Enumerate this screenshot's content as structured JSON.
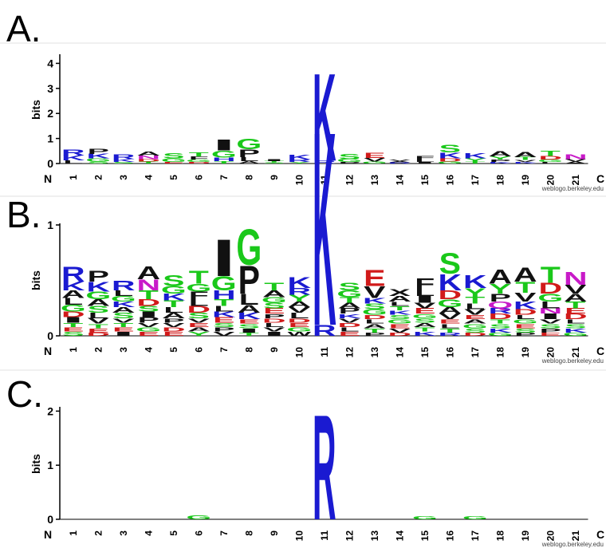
{
  "colors": {
    "basic": "#1a1ad1",
    "acidic": "#d11a1a",
    "polar": "#1ac81a",
    "hydrophobic": "#111111",
    "amide": "#c81ac8"
  },
  "chart_data": [
    {
      "type": "sequence-logo",
      "panel_label": "A.",
      "ylabel": "bits",
      "ylim": [
        0,
        4.3
      ],
      "yticks": [
        "0",
        "1",
        "2",
        "3",
        "4"
      ],
      "ytick_values": [
        0,
        1,
        2,
        3,
        4
      ],
      "n_label": "N",
      "c_label": "C",
      "positions": [
        "1",
        "2",
        "3",
        "4",
        "5",
        "6",
        "7",
        "8",
        "9",
        "10",
        "11",
        "12",
        "13",
        "14",
        "15",
        "16",
        "17",
        "18",
        "19",
        "20",
        "21"
      ],
      "credit": "weblogo.berkeley.edu",
      "stacks": [
        [
          [
            "R",
            0.25
          ],
          [
            "K",
            0.2
          ],
          [
            "L",
            0.12
          ]
        ],
        [
          [
            "P",
            0.2
          ],
          [
            "K",
            0.18
          ],
          [
            "G",
            0.12
          ],
          [
            "S",
            0.08
          ]
        ],
        [
          [
            "R",
            0.18
          ],
          [
            "K",
            0.12
          ],
          [
            "S",
            0.06
          ]
        ],
        [
          [
            "A",
            0.16
          ],
          [
            "N",
            0.14
          ],
          [
            "D",
            0.1
          ],
          [
            "T",
            0.08
          ]
        ],
        [
          [
            "S",
            0.22
          ],
          [
            "G",
            0.14
          ],
          [
            "E",
            0.06
          ]
        ],
        [
          [
            "T",
            0.16
          ],
          [
            "F",
            0.12
          ],
          [
            "G",
            0.1
          ],
          [
            "D",
            0.06
          ]
        ],
        [
          [
            "I",
            0.45
          ],
          [
            "G",
            0.28
          ],
          [
            "H",
            0.14
          ],
          [
            "T",
            0.1
          ]
        ],
        [
          [
            "G",
            0.42
          ],
          [
            "P",
            0.32
          ],
          [
            "L",
            0.16
          ],
          [
            "A",
            0.1
          ]
        ],
        [
          [
            "I",
            0.08
          ],
          [
            "T",
            0.06
          ],
          [
            "S",
            0.04
          ]
        ],
        [
          [
            "K",
            0.18
          ],
          [
            "R",
            0.1
          ],
          [
            "Y",
            0.06
          ]
        ],
        [
          [
            "K",
            3.6
          ],
          [
            "R",
            0.12
          ]
        ],
        [
          [
            "S",
            0.2
          ],
          [
            "G",
            0.12
          ],
          [
            "P",
            0.06
          ]
        ],
        [
          [
            "E",
            0.22
          ],
          [
            "V",
            0.14
          ],
          [
            "G",
            0.08
          ]
        ],
        [
          [
            "V",
            0.06
          ],
          [
            "A",
            0.05
          ],
          [
            "R",
            0.04
          ]
        ],
        [
          [
            "F",
            0.14
          ],
          [
            "L",
            0.1
          ],
          [
            "I",
            0.06
          ]
        ],
        [
          [
            "S",
            0.32
          ],
          [
            "K",
            0.24
          ],
          [
            "D",
            0.12
          ],
          [
            "G",
            0.08
          ]
        ],
        [
          [
            "K",
            0.2
          ],
          [
            "Y",
            0.12
          ],
          [
            "T",
            0.08
          ]
        ],
        [
          [
            "A",
            0.2
          ],
          [
            "Y",
            0.12
          ],
          [
            "P",
            0.1
          ],
          [
            "K",
            0.06
          ]
        ],
        [
          [
            "A",
            0.2
          ],
          [
            "T",
            0.12
          ],
          [
            "V",
            0.08
          ],
          [
            "K",
            0.06
          ]
        ],
        [
          [
            "T",
            0.22
          ],
          [
            "D",
            0.14
          ],
          [
            "G",
            0.1
          ],
          [
            "L",
            0.06
          ]
        ],
        [
          [
            "N",
            0.18
          ],
          [
            "V",
            0.1
          ],
          [
            "A",
            0.08
          ]
        ]
      ]
    },
    {
      "type": "sequence-logo",
      "panel_label": "B.",
      "ylabel": "bits",
      "ylim": [
        0,
        1
      ],
      "yticks": [
        "0",
        "1"
      ],
      "ytick_values": [
        0,
        1
      ],
      "n_label": "N",
      "c_label": "C",
      "positions": [
        "1",
        "2",
        "3",
        "4",
        "5",
        "6",
        "7",
        "8",
        "9",
        "10",
        "11",
        "12",
        "13",
        "14",
        "15",
        "16",
        "17",
        "18",
        "19",
        "20",
        "21"
      ],
      "credit": "weblogo.berkeley.edu",
      "stacks": [
        [
          [
            "R",
            0.14
          ],
          [
            "I",
            0.05
          ],
          [
            "K",
            0.08
          ],
          [
            "G",
            0.06
          ],
          [
            "S",
            0.04
          ],
          [
            "A",
            0.07
          ],
          [
            "L",
            0.06
          ],
          [
            "D",
            0.05
          ],
          [
            "E",
            0.04
          ],
          [
            "T",
            0.04
          ]
        ],
        [
          [
            "P",
            0.1
          ],
          [
            "K",
            0.09
          ],
          [
            "G",
            0.07
          ],
          [
            "S",
            0.06
          ],
          [
            "A",
            0.06
          ],
          [
            "V",
            0.05
          ],
          [
            "L",
            0.05
          ],
          [
            "E",
            0.04
          ],
          [
            "T",
            0.04
          ],
          [
            "D",
            0.03
          ]
        ],
        [
          [
            "R",
            0.09
          ],
          [
            "I",
            0.04
          ],
          [
            "S",
            0.05
          ],
          [
            "A",
            0.05
          ],
          [
            "K",
            0.05
          ],
          [
            "G",
            0.05
          ],
          [
            "L",
            0.05
          ],
          [
            "E",
            0.04
          ],
          [
            "T",
            0.04
          ],
          [
            "V",
            0.04
          ]
        ],
        [
          [
            "A",
            0.12
          ],
          [
            "N",
            0.1
          ],
          [
            "T",
            0.08
          ],
          [
            "D",
            0.06
          ],
          [
            "P",
            0.05
          ],
          [
            "I",
            0.05
          ],
          [
            "S",
            0.05
          ],
          [
            "E",
            0.04
          ],
          [
            "G",
            0.04
          ],
          [
            "V",
            0.04
          ]
        ],
        [
          [
            "S",
            0.1
          ],
          [
            "G",
            0.07
          ],
          [
            "T",
            0.06
          ],
          [
            "K",
            0.06
          ],
          [
            "A",
            0.05
          ],
          [
            "L",
            0.05
          ],
          [
            "E",
            0.04
          ],
          [
            "D",
            0.04
          ],
          [
            "V",
            0.04
          ],
          [
            "P",
            0.04
          ]
        ],
        [
          [
            "T",
            0.12
          ],
          [
            "F",
            0.07
          ],
          [
            "G",
            0.07
          ],
          [
            "D",
            0.06
          ],
          [
            "L",
            0.06
          ],
          [
            "S",
            0.05
          ],
          [
            "Y",
            0.04
          ],
          [
            "A",
            0.04
          ],
          [
            "E",
            0.04
          ],
          [
            "V",
            0.04
          ]
        ],
        [
          [
            "I",
            0.34
          ],
          [
            "G",
            0.13
          ],
          [
            "H",
            0.08
          ],
          [
            "T",
            0.06
          ],
          [
            "E",
            0.05
          ],
          [
            "K",
            0.05
          ],
          [
            "L",
            0.05
          ],
          [
            "V",
            0.04
          ],
          [
            "P",
            0.04
          ],
          [
            "S",
            0.04
          ]
        ],
        [
          [
            "G",
            0.33
          ],
          [
            "P",
            0.26
          ],
          [
            "L",
            0.1
          ],
          [
            "A",
            0.07
          ],
          [
            "K",
            0.06
          ],
          [
            "I",
            0.04
          ],
          [
            "S",
            0.04
          ],
          [
            "E",
            0.04
          ],
          [
            "T",
            0.03
          ]
        ],
        [
          [
            "I",
            0.04
          ],
          [
            "T",
            0.07
          ],
          [
            "A",
            0.06
          ],
          [
            "E",
            0.05
          ],
          [
            "S",
            0.05
          ],
          [
            "G",
            0.05
          ],
          [
            "V",
            0.04
          ],
          [
            "L",
            0.04
          ],
          [
            "D",
            0.04
          ],
          [
            "P",
            0.04
          ]
        ],
        [
          [
            "K",
            0.1
          ],
          [
            "Y",
            0.06
          ],
          [
            "R",
            0.06
          ],
          [
            "L",
            0.05
          ],
          [
            "V",
            0.05
          ],
          [
            "A",
            0.05
          ],
          [
            "W",
            0.04
          ],
          [
            "G",
            0.04
          ],
          [
            "E",
            0.04
          ],
          [
            "D",
            0.04
          ]
        ],
        [
          [
            "K",
            1.8
          ],
          [
            "R",
            0.1
          ]
        ],
        [
          [
            "S",
            0.07
          ],
          [
            "G",
            0.06
          ],
          [
            "P",
            0.05
          ],
          [
            "A",
            0.05
          ],
          [
            "T",
            0.05
          ],
          [
            "E",
            0.04
          ],
          [
            "L",
            0.04
          ],
          [
            "D",
            0.04
          ],
          [
            "V",
            0.04
          ],
          [
            "K",
            0.04
          ]
        ],
        [
          [
            "E",
            0.15
          ],
          [
            "V",
            0.11
          ],
          [
            "G",
            0.05
          ],
          [
            "S",
            0.05
          ],
          [
            "K",
            0.05
          ],
          [
            "T",
            0.04
          ],
          [
            "A",
            0.04
          ],
          [
            "L",
            0.04
          ],
          [
            "D",
            0.04
          ],
          [
            "P",
            0.03
          ]
        ],
        [
          [
            "X",
            0.06
          ],
          [
            "A",
            0.05
          ],
          [
            "V",
            0.04
          ],
          [
            "E",
            0.04
          ],
          [
            "G",
            0.04
          ],
          [
            "S",
            0.04
          ],
          [
            "K",
            0.04
          ],
          [
            "T",
            0.04
          ],
          [
            "L",
            0.04
          ],
          [
            "D",
            0.03
          ]
        ],
        [
          [
            "F",
            0.1
          ],
          [
            "I",
            0.06
          ],
          [
            "L",
            0.06
          ],
          [
            "E",
            0.05
          ],
          [
            "V",
            0.05
          ],
          [
            "K",
            0.04
          ],
          [
            "T",
            0.04
          ],
          [
            "A",
            0.04
          ],
          [
            "S",
            0.04
          ],
          [
            "G",
            0.04
          ]
        ],
        [
          [
            "S",
            0.19
          ],
          [
            "K",
            0.15
          ],
          [
            "D",
            0.08
          ],
          [
            "G",
            0.07
          ],
          [
            "A",
            0.06
          ],
          [
            "V",
            0.05
          ],
          [
            "T",
            0.04
          ],
          [
            "L",
            0.04
          ],
          [
            "E",
            0.04
          ],
          [
            "R",
            0.03
          ]
        ],
        [
          [
            "K",
            0.12
          ],
          [
            "Y",
            0.08
          ],
          [
            "T",
            0.06
          ],
          [
            "V",
            0.05
          ],
          [
            "L",
            0.05
          ],
          [
            "S",
            0.04
          ],
          [
            "G",
            0.04
          ],
          [
            "A",
            0.04
          ],
          [
            "E",
            0.04
          ],
          [
            "D",
            0.03
          ]
        ],
        [
          [
            "A",
            0.13
          ],
          [
            "Y",
            0.09
          ],
          [
            "P",
            0.07
          ],
          [
            "Q",
            0.06
          ],
          [
            "D",
            0.05
          ],
          [
            "R",
            0.05
          ],
          [
            "K",
            0.04
          ],
          [
            "S",
            0.04
          ],
          [
            "T",
            0.04
          ],
          [
            "G",
            0.03
          ]
        ],
        [
          [
            "A",
            0.13
          ],
          [
            "T",
            0.1
          ],
          [
            "V",
            0.08
          ],
          [
            "K",
            0.07
          ],
          [
            "D",
            0.05
          ],
          [
            "S",
            0.04
          ],
          [
            "E",
            0.04
          ],
          [
            "G",
            0.04
          ],
          [
            "L",
            0.04
          ],
          [
            "P",
            0.03
          ]
        ],
        [
          [
            "T",
            0.15
          ],
          [
            "D",
            0.1
          ],
          [
            "G",
            0.07
          ],
          [
            "I",
            0.05
          ],
          [
            "L",
            0.06
          ],
          [
            "N",
            0.05
          ],
          [
            "P",
            0.04
          ],
          [
            "S",
            0.04
          ],
          [
            "V",
            0.04
          ],
          [
            "E",
            0.03
          ]
        ],
        [
          [
            "N",
            0.12
          ],
          [
            "V",
            0.08
          ],
          [
            "A",
            0.07
          ],
          [
            "T",
            0.06
          ],
          [
            "D",
            0.05
          ],
          [
            "E",
            0.05
          ],
          [
            "K",
            0.04
          ],
          [
            "S",
            0.04
          ],
          [
            "L",
            0.04
          ],
          [
            "G",
            0.03
          ]
        ]
      ]
    },
    {
      "type": "sequence-logo",
      "panel_label": "C.",
      "ylabel": "bits",
      "ylim": [
        0,
        2.05
      ],
      "yticks": [
        "0",
        "1",
        "2"
      ],
      "ytick_values": [
        0,
        1,
        2
      ],
      "n_label": "N",
      "c_label": "C",
      "positions": [
        "1",
        "2",
        "3",
        "4",
        "5",
        "6",
        "7",
        "8",
        "9",
        "10",
        "11",
        "12",
        "13",
        "14",
        "15",
        "16",
        "17",
        "18",
        "19",
        "20",
        "21"
      ],
      "credit": "weblogo.berkeley.edu",
      "stacks": [
        [],
        [],
        [],
        [],
        [],
        [
          [
            "G",
            0.08
          ]
        ],
        [],
        [],
        [],
        [],
        [
          [
            "R",
            2.0
          ]
        ],
        [],
        [],
        [],
        [
          [
            "G",
            0.06
          ]
        ],
        [],
        [
          [
            "G",
            0.06
          ]
        ],
        [],
        [],
        [],
        []
      ]
    }
  ]
}
